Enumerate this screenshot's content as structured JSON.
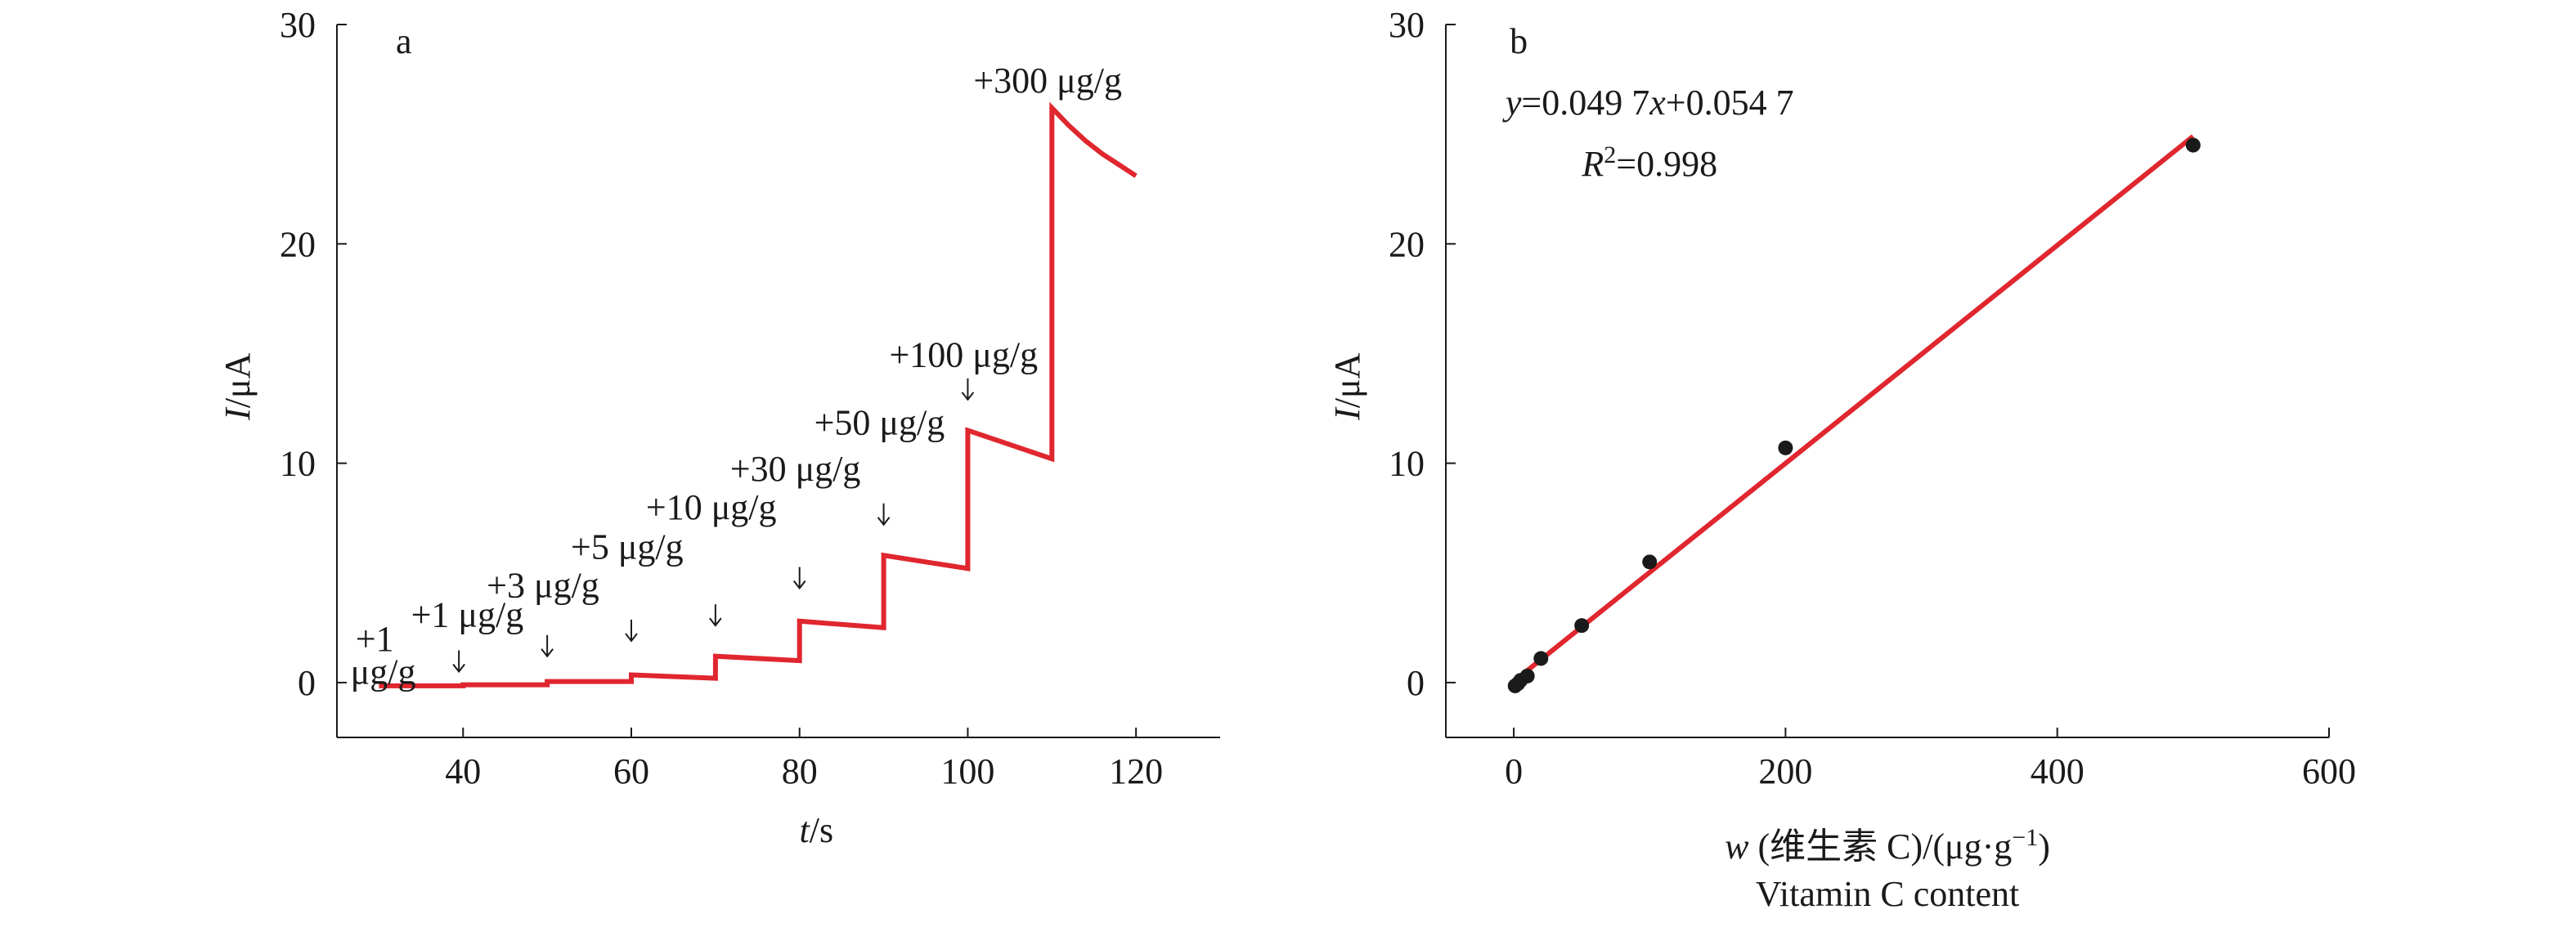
{
  "chart_data": [
    {
      "panel": "a",
      "type": "line",
      "xlabel_var": "t",
      "xlabel_unit": "/s",
      "ylabel_var": "I",
      "ylabel_unit": "/μA",
      "xlim": [
        25,
        130
      ],
      "ylim": [
        -2.5,
        30
      ],
      "xticks": [
        40,
        60,
        80,
        100,
        120
      ],
      "yticks": [
        0,
        10,
        20,
        30
      ],
      "line_color": "#e0262e",
      "series": [
        {
          "x": [
            30,
            40,
            40,
            50,
            50,
            60,
            60,
            70,
            70,
            80,
            80,
            90,
            90,
            100,
            100,
            110,
            110,
            112,
            114,
            116,
            118,
            120
          ],
          "y": [
            -0.15,
            -0.15,
            -0.1,
            -0.1,
            0.05,
            0.05,
            0.35,
            0.2,
            1.2,
            1.0,
            2.8,
            2.5,
            5.8,
            5.2,
            11.5,
            10.2,
            26.2,
            25.4,
            24.7,
            24.1,
            23.6,
            23.1
          ]
        }
      ],
      "annotations": [
        {
          "text": "+1",
          "x": 29.5,
          "y": 1.45,
          "arrow": false
        },
        {
          "text": "μg/g",
          "x": 30.5,
          "y": -0.05,
          "arrow": false
        },
        {
          "text": "+1 μg/g",
          "x": 40.5,
          "y": 2.55,
          "arrow": true,
          "arrow_x": 39.5,
          "arrow_y": 0.5
        },
        {
          "text": "+3 μg/g",
          "x": 49.5,
          "y": 3.9,
          "arrow": true,
          "arrow_x": 50,
          "arrow_y": 1.2
        },
        {
          "text": "+5 μg/g",
          "x": 59.5,
          "y": 5.65,
          "arrow": true,
          "arrow_x": 60,
          "arrow_y": 1.9
        },
        {
          "text": "+10 μg/g",
          "x": 69.5,
          "y": 7.45,
          "arrow": true,
          "arrow_x": 70,
          "arrow_y": 2.6
        },
        {
          "text": "+30 μg/g",
          "x": 79.5,
          "y": 9.2,
          "arrow": true,
          "arrow_x": 80,
          "arrow_y": 4.3
        },
        {
          "text": "+50 μg/g",
          "x": 89.5,
          "y": 11.3,
          "arrow": true,
          "arrow_x": 90,
          "arrow_y": 7.2
        },
        {
          "text": "+100 μg/g",
          "x": 99.5,
          "y": 14.4,
          "arrow": true,
          "arrow_x": 100,
          "arrow_y": 12.9
        },
        {
          "text": "+300 μg/g",
          "x": 109.5,
          "y": 26.9,
          "arrow": false
        }
      ]
    },
    {
      "panel": "b",
      "type": "scatter",
      "xlabel_var": "w",
      "xlabel_rest": " (维生素 C)/(μg·g",
      "xlabel_sup": "−1",
      "xlabel_close": ")",
      "xlabel_en": "Vitamin C content",
      "ylabel_var": "I",
      "ylabel_unit": "/μA",
      "xlim": [
        -50,
        600
      ],
      "ylim": [
        -2.5,
        30
      ],
      "xticks": [
        0,
        200,
        400,
        600
      ],
      "yticks": [
        0,
        10,
        20,
        30
      ],
      "equation_y": "y",
      "equation_eq": "=0.049 7",
      "equation_x": "x",
      "equation_tail": "+0.054 7",
      "r2_var": "R",
      "r2_sup": "2",
      "r2_value": "=0.998",
      "fit": {
        "slope": 0.0497,
        "intercept": 0.0547,
        "x_range": [
          0,
          500
        ],
        "color": "#e0262e"
      },
      "points": {
        "x": [
          1,
          3,
          5,
          10,
          20,
          50,
          100,
          200,
          500
        ],
        "y": [
          -0.15,
          -0.05,
          0.1,
          0.3,
          1.1,
          2.6,
          5.5,
          10.7,
          24.5
        ],
        "color": "#1a1a1a"
      }
    }
  ],
  "panels_layout": [
    {
      "panel_letter": "a"
    },
    {
      "panel_letter": "b"
    }
  ]
}
